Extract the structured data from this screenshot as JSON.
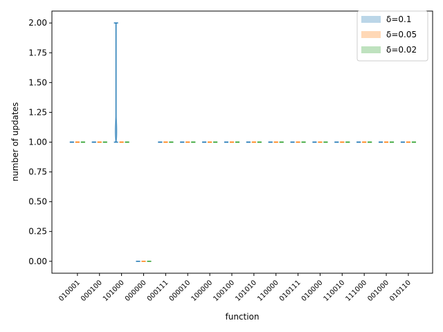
{
  "chart_data": {
    "type": "violin",
    "x_label": "function",
    "y_label": "number of updates",
    "categories": [
      "010001",
      "000100",
      "101000",
      "000000",
      "000111",
      "000010",
      "100000",
      "100100",
      "101010",
      "110000",
      "010111",
      "010000",
      "110010",
      "111000",
      "001000",
      "010110"
    ],
    "series": [
      {
        "name": "δ=0.1",
        "color": "#1f77b4",
        "min": [
          1,
          1,
          1,
          0,
          1,
          1,
          1,
          1,
          1,
          1,
          1,
          1,
          1,
          1,
          1,
          1
        ],
        "max": [
          1,
          1,
          2,
          0,
          1,
          1,
          1,
          1,
          1,
          1,
          1,
          1,
          1,
          1,
          1,
          1
        ]
      },
      {
        "name": "δ=0.05",
        "color": "#ff7f0e",
        "min": [
          1,
          1,
          1,
          0,
          1,
          1,
          1,
          1,
          1,
          1,
          1,
          1,
          1,
          1,
          1,
          1
        ],
        "max": [
          1,
          1,
          1,
          0,
          1,
          1,
          1,
          1,
          1,
          1,
          1,
          1,
          1,
          1,
          1,
          1
        ]
      },
      {
        "name": "δ=0.02",
        "color": "#2ca02c",
        "min": [
          1,
          1,
          1,
          0,
          1,
          1,
          1,
          1,
          1,
          1,
          1,
          1,
          1,
          1,
          1,
          1
        ],
        "max": [
          1,
          1,
          1,
          0,
          1,
          1,
          1,
          1,
          1,
          1,
          1,
          1,
          1,
          1,
          1,
          1
        ]
      }
    ],
    "ylim": [
      -0.1,
      2.1
    ],
    "yticks": [
      {
        "value": 0,
        "label": "0.00"
      },
      {
        "value": 0.25,
        "label": "0.25"
      },
      {
        "value": 0.5,
        "label": "0.50"
      },
      {
        "value": 0.75,
        "label": "0.75"
      },
      {
        "value": 1,
        "label": "1.00"
      },
      {
        "value": 1.25,
        "label": "1.25"
      },
      {
        "value": 1.5,
        "label": "1.50"
      },
      {
        "value": 1.75,
        "label": "1.75"
      },
      {
        "value": 2,
        "label": "2.00"
      }
    ],
    "legend": "upper right"
  }
}
